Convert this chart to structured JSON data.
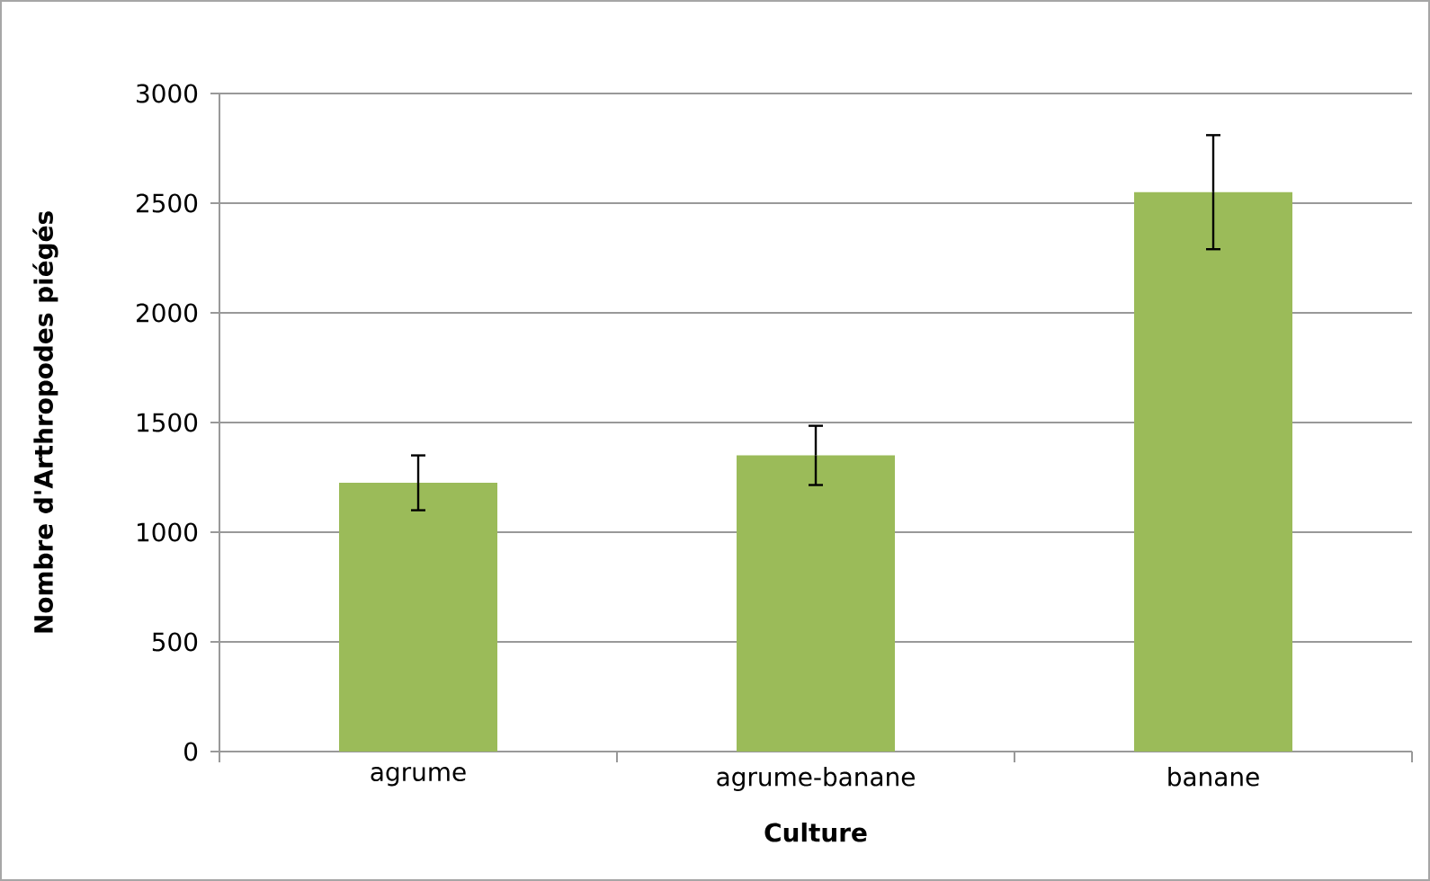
{
  "chart_data": {
    "type": "bar",
    "xlabel": "Culture",
    "ylabel": "Nombre d'Arthropodes piégés",
    "categories": [
      "agrume",
      "agrume-banane",
      "banane"
    ],
    "values": [
      1225,
      1350,
      2550
    ],
    "errors": [
      125,
      135,
      260
    ],
    "color": "#9bbb59",
    "ylim": [
      0,
      3000
    ],
    "yticks": [
      0,
      500,
      1000,
      1500,
      2000,
      2500,
      3000
    ],
    "grid": "y"
  }
}
